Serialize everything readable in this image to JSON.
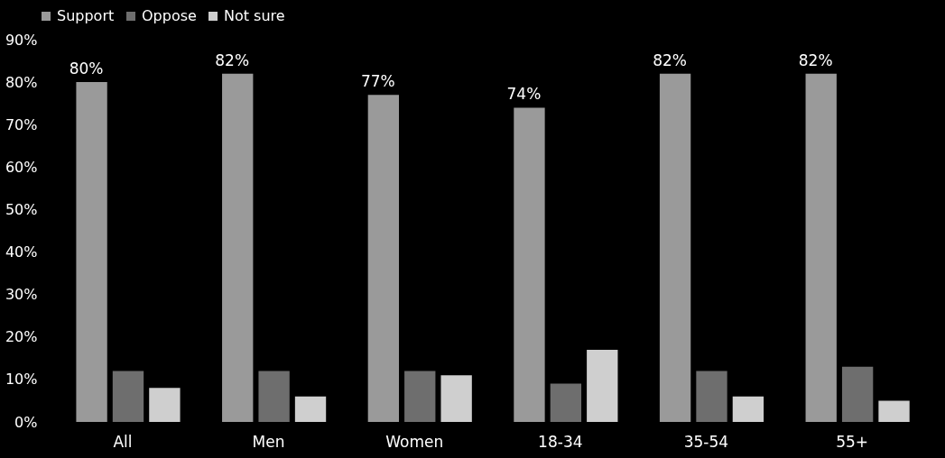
{
  "chart_data": {
    "type": "bar",
    "categories": [
      "All",
      "Men",
      "Women",
      "18-34",
      "35-54",
      "55+"
    ],
    "series": [
      {
        "name": "Support",
        "color": "#9a9a9a",
        "values": [
          80,
          82,
          77,
          74,
          82,
          82
        ],
        "value_labels": [
          "80%",
          "82%",
          "77%",
          "74%",
          "82%",
          "82%"
        ]
      },
      {
        "name": "Oppose",
        "color": "#6e6e6e",
        "values": [
          12,
          12,
          12,
          9,
          12,
          13
        ]
      },
      {
        "name": "Not sure",
        "color": "#cfcfcf",
        "values": [
          8,
          6,
          11,
          17,
          6,
          5
        ]
      }
    ],
    "ylim": [
      0,
      90
    ],
    "yticks": [
      {
        "value": 0,
        "label": "0%"
      },
      {
        "value": 10,
        "label": "10%"
      },
      {
        "value": 20,
        "label": "20%"
      },
      {
        "value": 30,
        "label": "30%"
      },
      {
        "value": 40,
        "label": "40%"
      },
      {
        "value": 50,
        "label": "50%"
      },
      {
        "value": 60,
        "label": "60%"
      },
      {
        "value": 70,
        "label": "70%"
      },
      {
        "value": 80,
        "label": "80%"
      },
      {
        "value": 90,
        "label": "90%"
      }
    ],
    "legend": "top",
    "grid": false
  }
}
